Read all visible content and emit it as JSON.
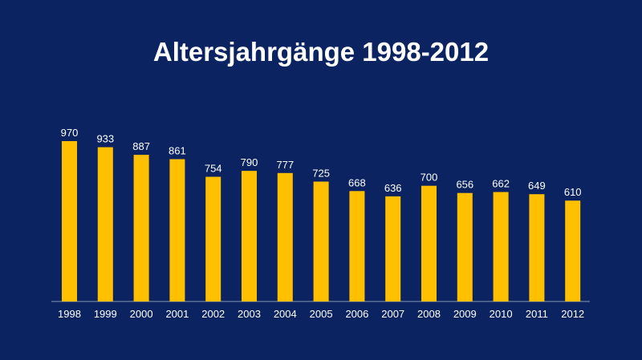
{
  "chart_data": {
    "type": "bar",
    "title": "Altersjahrgänge 1998-2012",
    "categories": [
      "1998",
      "1999",
      "2000",
      "2001",
      "2002",
      "2003",
      "2004",
      "2005",
      "2006",
      "2007",
      "2008",
      "2009",
      "2010",
      "2011",
      "2012"
    ],
    "values": [
      970,
      933,
      887,
      861,
      754,
      790,
      777,
      725,
      668,
      636,
      700,
      656,
      662,
      649,
      610
    ],
    "ylim": [
      0,
      970
    ],
    "grid": false,
    "colors": {
      "bar": "#ffc000",
      "background": "#0b2461",
      "text": "#ffffff"
    }
  }
}
